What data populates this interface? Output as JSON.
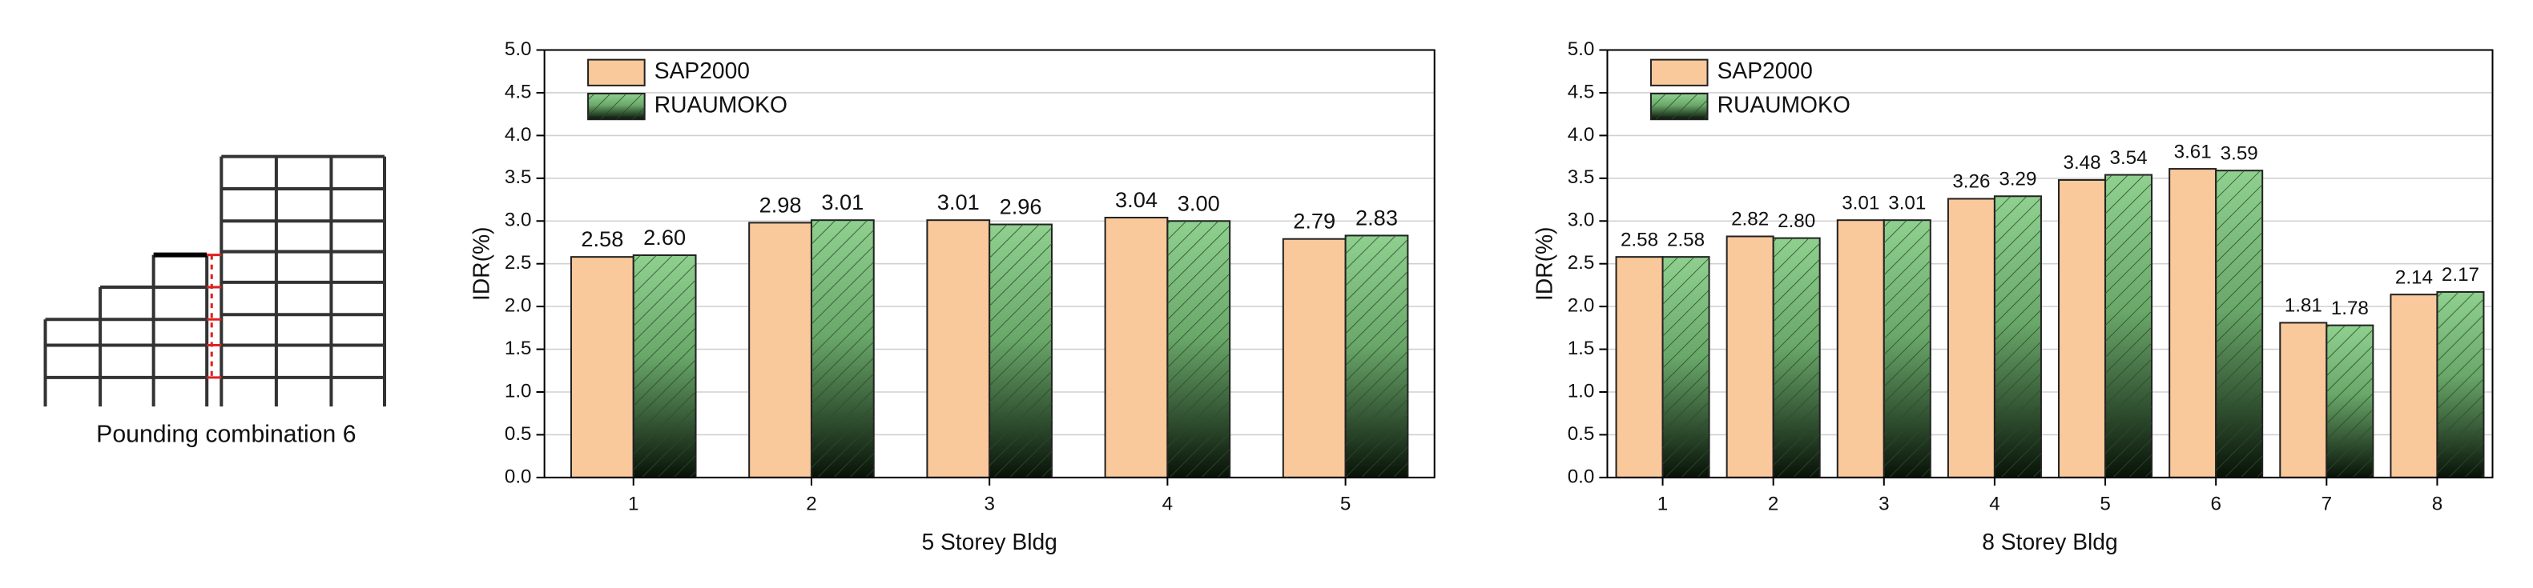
{
  "diagram": {
    "caption": "Pounding combination 6"
  },
  "chart_data": [
    {
      "type": "bar",
      "xlabel": "5 Storey Bldg",
      "ylabel": "IDR(%)",
      "categories": [
        "1",
        "2",
        "3",
        "4",
        "5"
      ],
      "series": [
        {
          "name": "SAP2000",
          "color": "#f9c89b",
          "values": [
            2.58,
            2.98,
            3.01,
            3.04,
            2.79
          ],
          "value_labels": [
            "2.58",
            "2.98",
            "3.01",
            "3.04",
            "2.79"
          ]
        },
        {
          "name": "RUAUMOKO",
          "color": "#8fd08f",
          "values": [
            2.6,
            3.01,
            2.96,
            3.0,
            2.83
          ],
          "value_labels": [
            "2.60",
            "3.01",
            "2.96",
            "3.00",
            "2.83"
          ]
        }
      ],
      "ylim": [
        0,
        5
      ],
      "yticks": [
        {
          "value": 0,
          "label": "0.0"
        },
        {
          "value": 0.5,
          "label": "0.5"
        },
        {
          "value": 1,
          "label": "1.0"
        },
        {
          "value": 1.5,
          "label": "1.5"
        },
        {
          "value": 2,
          "label": "2.0"
        },
        {
          "value": 2.5,
          "label": "2.5"
        },
        {
          "value": 3,
          "label": "3.0"
        },
        {
          "value": 3.5,
          "label": "3.5"
        },
        {
          "value": 4,
          "label": "4.0"
        },
        {
          "value": 4.5,
          "label": "4.5"
        },
        {
          "value": 5,
          "label": "5.0"
        }
      ],
      "grid": true,
      "legend": "upper left"
    },
    {
      "type": "bar",
      "xlabel": "8 Storey Bldg",
      "ylabel": "IDR(%)",
      "categories": [
        "1",
        "2",
        "3",
        "4",
        "5",
        "6",
        "7",
        "8"
      ],
      "series": [
        {
          "name": "SAP2000",
          "color": "#f9c89b",
          "values": [
            2.58,
            2.82,
            3.01,
            3.26,
            3.48,
            3.61,
            1.81,
            2.14
          ],
          "value_labels": [
            "2.58",
            "2.82",
            "3.01",
            "3.26",
            "3.48",
            "3.61",
            "1.81",
            "2.14"
          ]
        },
        {
          "name": "RUAUMOKO",
          "color": "#8fd08f",
          "values": [
            2.58,
            2.8,
            3.01,
            3.29,
            3.54,
            3.59,
            1.78,
            2.17
          ],
          "value_labels": [
            "2.58",
            "2.80",
            "3.01",
            "3.29",
            "3.54",
            "3.59",
            "1.78",
            "2.17"
          ]
        }
      ],
      "ylim": [
        0,
        5
      ],
      "yticks": [
        {
          "value": 0,
          "label": "0.0"
        },
        {
          "value": 0.5,
          "label": "0.5"
        },
        {
          "value": 1,
          "label": "1.0"
        },
        {
          "value": 1.5,
          "label": "1.5"
        },
        {
          "value": 2,
          "label": "2.0"
        },
        {
          "value": 2.5,
          "label": "2.5"
        },
        {
          "value": 3,
          "label": "3.0"
        },
        {
          "value": 3.5,
          "label": "3.5"
        },
        {
          "value": 4,
          "label": "4.0"
        },
        {
          "value": 4.5,
          "label": "4.5"
        },
        {
          "value": 5,
          "label": "5.0"
        }
      ],
      "grid": true,
      "legend": "upper left"
    }
  ]
}
